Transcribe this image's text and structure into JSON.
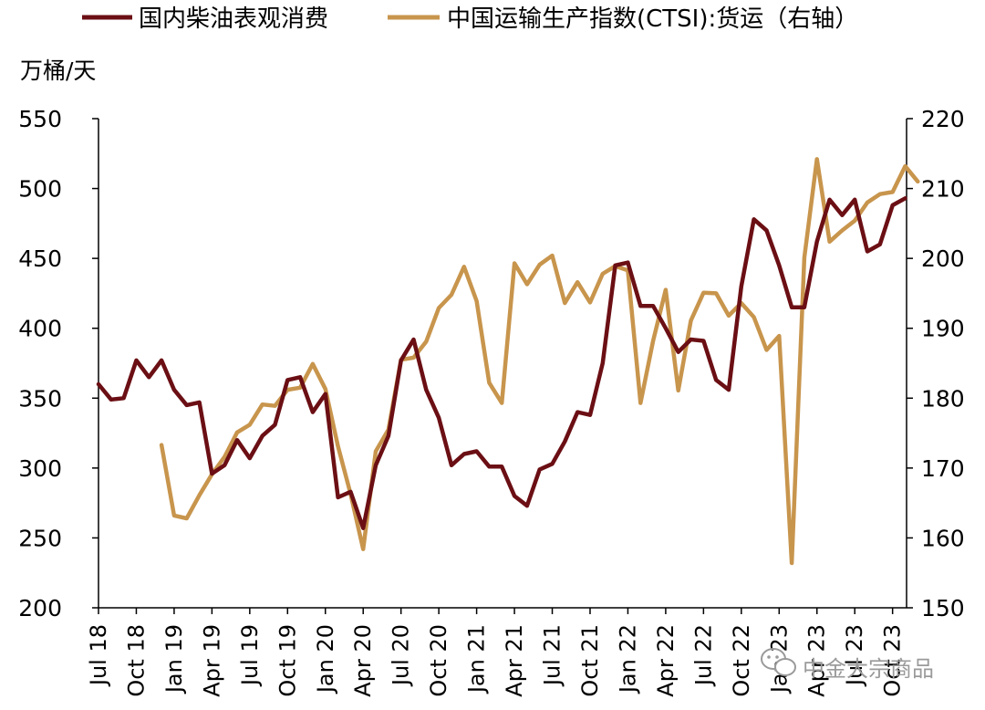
{
  "chart_data": {
    "type": "line",
    "y_left_label": "万桶/天",
    "y_left_range": [
      200,
      550
    ],
    "y_left_ticks": [
      200,
      250,
      300,
      350,
      400,
      450,
      500,
      550
    ],
    "y_right_range": [
      150,
      220
    ],
    "y_right_ticks": [
      150,
      160,
      170,
      180,
      190,
      200,
      210,
      220
    ],
    "x_tick_labels": [
      "Jul 18",
      "Oct 18",
      "Jan 19",
      "Apr 19",
      "Jul 19",
      "Oct 19",
      "Jan 20",
      "Apr 20",
      "Jul 20",
      "Oct 20",
      "Jan 21",
      "Apr 21",
      "Jul 21",
      "Oct 21",
      "Jan 22",
      "Apr 22",
      "Jul 22",
      "Oct 22",
      "Jan 23",
      "Apr 23",
      "Jul 23",
      "Oct 23"
    ],
    "legend_position": "top",
    "grid": false,
    "series": [
      {
        "name": "国内柴油表观消费",
        "axis": "left",
        "color": "#6b0f14",
        "values": [
          360,
          349,
          350,
          377,
          365,
          377,
          356,
          345,
          347,
          296,
          302,
          320,
          307,
          323,
          331,
          363,
          365,
          340,
          353,
          279,
          283,
          257,
          302,
          323,
          377,
          392,
          356,
          336,
          302,
          310,
          312,
          301,
          301,
          280,
          273,
          299,
          303,
          319,
          340,
          338,
          375,
          445,
          447,
          416,
          416,
          400,
          383,
          392,
          391,
          363,
          356,
          430,
          478,
          470,
          445,
          415,
          415,
          462,
          492,
          481,
          492,
          455,
          460,
          488,
          493
        ]
      },
      {
        "name": "中国运输生产指数(CTSI):货运(右轴)",
        "axis": "right",
        "color": "#c8954d",
        "values": [
          null,
          null,
          null,
          null,
          null,
          173.3,
          163.2,
          162.8,
          166.1,
          169.1,
          171.6,
          175.1,
          176.2,
          179.1,
          178.9,
          181.2,
          181.5,
          184.9,
          181.3,
          173.1,
          166.3,
          158.4,
          172.4,
          175.5,
          185.5,
          185.8,
          188.1,
          192.9,
          194.8,
          198.8,
          193.9,
          182.2,
          179.3,
          199.3,
          196.3,
          199.1,
          200.4,
          193.6,
          196.6,
          193.7,
          197.8,
          198.9,
          198.3,
          179.3,
          188.2,
          195.5,
          181.1,
          191.1,
          195.1,
          195.0,
          191.8,
          193.6,
          191.6,
          186.9,
          188.9,
          156.4,
          200.1,
          214.2,
          202.4,
          204.0,
          205.4,
          208.0,
          209.2,
          209.5,
          213.2,
          211.0
        ]
      }
    ]
  },
  "legend": {
    "item1_label": "国内柴油表观消费",
    "item2_label": "中国运输生产指数(CTSI):货运（右轴）"
  },
  "watermark": {
    "text": "中金大宗商品",
    "icon": "wechat-icon"
  }
}
